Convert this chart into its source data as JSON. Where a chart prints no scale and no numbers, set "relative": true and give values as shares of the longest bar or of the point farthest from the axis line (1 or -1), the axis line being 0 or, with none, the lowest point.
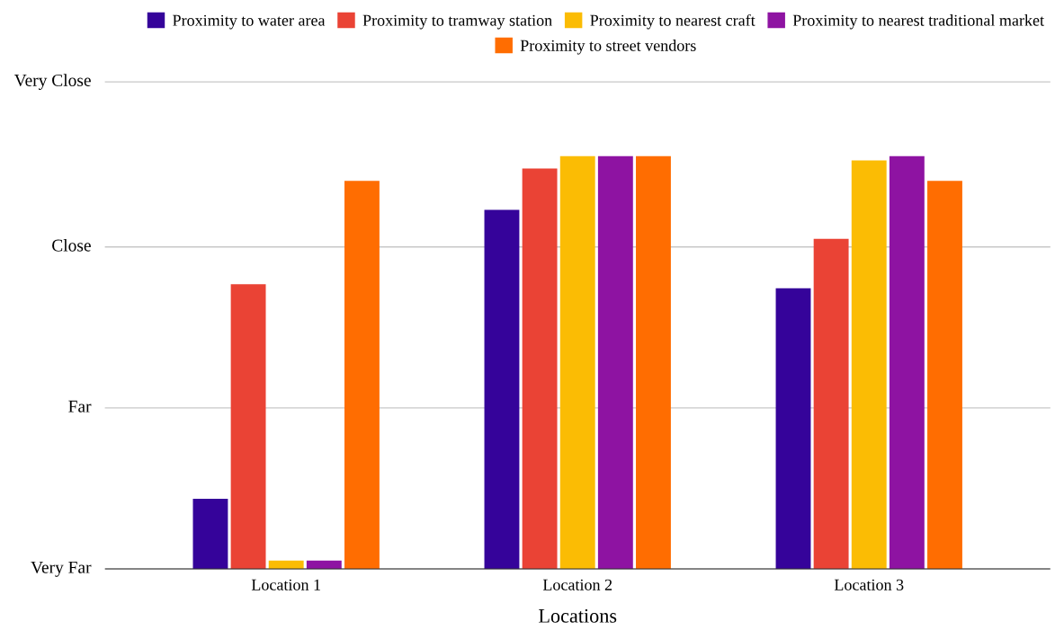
{
  "chart_data": {
    "type": "bar",
    "relative": true,
    "xlabel": "Locations",
    "categories": [
      "Location 1",
      "Location 2",
      "Location 3"
    ],
    "series": [
      {
        "name": "Proximity to water area",
        "color": "#35039a",
        "values": [
          0.17,
          0.87,
          0.68
        ]
      },
      {
        "name": "Proximity to tramway station",
        "color": "#ea4335",
        "values": [
          0.69,
          0.97,
          0.8
        ]
      },
      {
        "name": "Proximity to nearest craft",
        "color": "#fbbc04",
        "values": [
          0.02,
          1,
          0.99
        ]
      },
      {
        "name": "Proximity to nearest traditional market",
        "color": "#8e13a2",
        "values": [
          0.02,
          1,
          1
        ]
      },
      {
        "name": "Proximity to street vendors",
        "color": "#ff6d01",
        "values": [
          0.94,
          1,
          0.94
        ]
      }
    ],
    "ref_lines": [
      {
        "axis": "y",
        "value": 0,
        "label": "Very Far",
        "color": "#c8c8c8"
      },
      {
        "axis": "y",
        "value": 0.39,
        "label": "Far",
        "color": "#c8c8c8"
      },
      {
        "axis": "y",
        "value": 0.78,
        "label": "Close",
        "color": "#c8c8c8"
      },
      {
        "axis": "y",
        "value": 1.18,
        "label": "Very Close",
        "color": "#c8c8c8"
      }
    ],
    "legend": "top"
  }
}
